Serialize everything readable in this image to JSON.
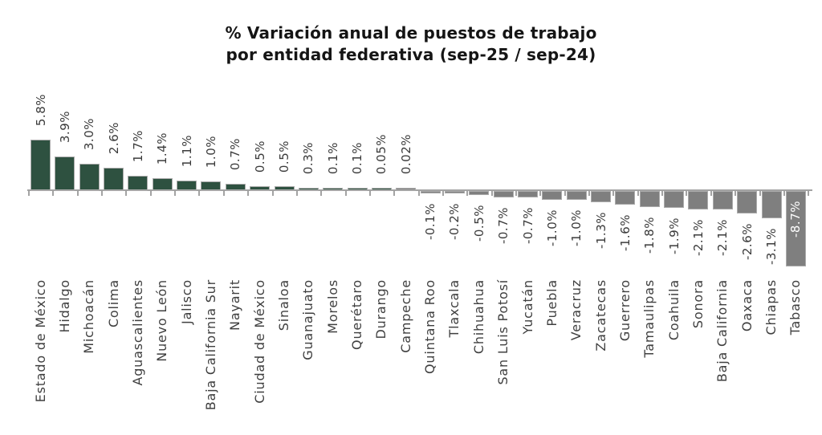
{
  "page": {
    "background": "#ffffff"
  },
  "chart_data": {
    "type": "bar",
    "title": "% Variación anual de puestos de trabajo",
    "subtitle": "por entidad federativa (sep-25 / sep-24)",
    "xlabel": "",
    "ylabel": "",
    "unit": "%",
    "grid": false,
    "legend": null,
    "ylim": [
      -9,
      6
    ],
    "categories": [
      "Estado de México",
      "Hidalgo",
      "Michoacán",
      "Colima",
      "Aguascalientes",
      "Nuevo León",
      "Jalisco",
      "Baja California Sur",
      "Nayarit",
      "Ciudad de México",
      "Sinaloa",
      "Guanajuato",
      "Morelos",
      "Querétaro",
      "Durango",
      "Campeche",
      "Quintana Roo",
      "Tlaxcala",
      "Chihuahua",
      "San Luis Potosí",
      "Yucatán",
      "Puebla",
      "Veracruz",
      "Zacatecas",
      "Guerrero",
      "Tamaulipas",
      "Coahuila",
      "Sonora",
      "Baja California",
      "Oaxaca",
      "Chiapas",
      "Tabasco"
    ],
    "values": [
      5.8,
      3.9,
      3.0,
      2.6,
      1.7,
      1.4,
      1.1,
      1.0,
      0.7,
      0.5,
      0.5,
      0.3,
      0.1,
      0.1,
      0.05,
      0.02,
      -0.1,
      -0.2,
      -0.5,
      -0.7,
      -0.7,
      -1.0,
      -1.0,
      -1.3,
      -1.6,
      -1.8,
      -1.9,
      -2.1,
      -2.1,
      -2.6,
      -3.1,
      -8.7
    ],
    "value_labels": [
      "5.8%",
      "3.9%",
      "3.0%",
      "2.6%",
      "1.7%",
      "1.4%",
      "1.1%",
      "1.0%",
      "0.7%",
      "0.5%",
      "0.5%",
      "0.3%",
      "0.1%",
      "0.1%",
      "0.05%",
      "0.02%",
      "-0.1%",
      "-0.2%",
      "-0.5%",
      "-0.7%",
      "-0.7%",
      "-1.0%",
      "-1.0%",
      "-1.3%",
      "-1.6%",
      "-1.8%",
      "-1.9%",
      "-2.1%",
      "-2.1%",
      "-2.6%",
      "-3.1%",
      "-8.7%"
    ],
    "bar_palette": [
      "#2E5140",
      "#2E5140",
      "#2E5140",
      "#2E5140",
      "#2E5140",
      "#2E5140",
      "#2E5140",
      "#2E5140",
      "#2E5140",
      "#2E5140",
      "#2E5140",
      "#2E5140",
      "#2E5140",
      "#2E5140",
      "#2E5140",
      "#7F7F7F",
      "#7F7F7F",
      "#7F7F7F",
      "#7F7F7F",
      "#7F7F7F",
      "#7F7F7F",
      "#7F7F7F",
      "#7F7F7F",
      "#7F7F7F",
      "#7F7F7F",
      "#7F7F7F",
      "#7F7F7F",
      "#7F7F7F",
      "#7F7F7F",
      "#7F7F7F",
      "#7F7F7F",
      "#7F7F7F"
    ],
    "colors": {
      "positive_bar": "#2E5140",
      "negative_bar": "#7F7F7F",
      "axis": "#A3A3A3",
      "label_text": "#3B3B3B",
      "inside_label_text": "#FFFFFF"
    },
    "inside_label": {
      "index": 31,
      "color": "#FFFFFF"
    }
  }
}
